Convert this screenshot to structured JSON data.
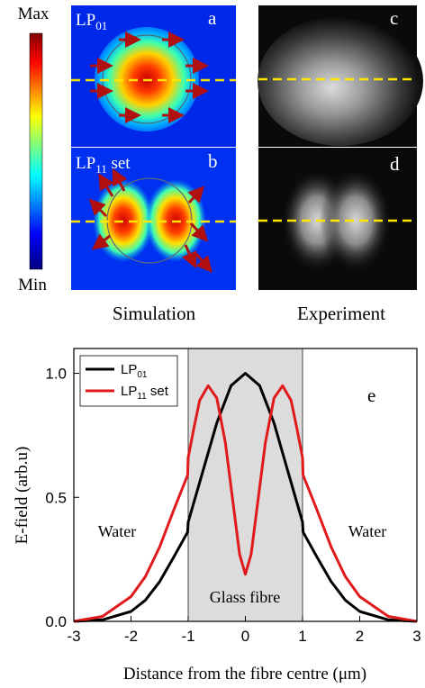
{
  "figure": {
    "colorbar": {
      "max_label": "Max",
      "min_label": "Min"
    },
    "panels": {
      "a": {
        "letter": "a",
        "mode_label": "LP",
        "mode_sub": "01"
      },
      "b": {
        "letter": "b",
        "mode_label": "LP",
        "mode_sub": "11",
        "mode_suffix": " set"
      },
      "c": {
        "letter": "c"
      },
      "d": {
        "letter": "d"
      }
    },
    "captions": {
      "simulation": "Simulation",
      "experiment": "Experiment"
    }
  },
  "chart_data": {
    "type": "line",
    "panel_letter": "e",
    "xlabel": "Distance from the fibre centre (μm)",
    "ylabel": "E-field (arb.u)",
    "xlim": [
      -3,
      3
    ],
    "ylim": [
      0,
      1.1
    ],
    "xticks": [
      "-3",
      "-2",
      "-1",
      "0",
      "1",
      "2",
      "3"
    ],
    "yticks": [
      "0.0",
      "0.5",
      "1.0"
    ],
    "shaded_region": {
      "x": [
        -1,
        1
      ],
      "label": "Glass fibre"
    },
    "region_labels": {
      "left": "Water",
      "right": "Water"
    },
    "legend": {
      "placement": "top-left"
    },
    "colors": {
      "LP01": "#000000",
      "LP11": "#e0191b",
      "shade": "#dcdcdc"
    },
    "series": [
      {
        "name_main": "LP",
        "name_sub": "01",
        "name_suffix": "",
        "color": "#000000",
        "x": [
          -3.0,
          -2.5,
          -2.0,
          -1.75,
          -1.5,
          -1.25,
          -1.01,
          -1.0,
          -0.75,
          -0.5,
          -0.25,
          0.0,
          0.25,
          0.5,
          0.75,
          1.0,
          1.01,
          1.25,
          1.5,
          1.75,
          2.0,
          2.5,
          3.0
        ],
        "y": [
          0.0,
          0.006,
          0.04,
          0.085,
          0.16,
          0.26,
          0.36,
          0.4,
          0.6,
          0.8,
          0.95,
          1.0,
          0.95,
          0.8,
          0.6,
          0.4,
          0.36,
          0.26,
          0.16,
          0.085,
          0.04,
          0.006,
          0.0
        ]
      },
      {
        "name_main": "LP",
        "name_sub": "11",
        "name_suffix": " set",
        "color": "#e0191b",
        "x": [
          -3.0,
          -2.5,
          -2.0,
          -1.75,
          -1.5,
          -1.25,
          -1.01,
          -1.0,
          -0.9,
          -0.8,
          -0.65,
          -0.5,
          -0.35,
          -0.2,
          -0.1,
          0.0,
          0.1,
          0.2,
          0.35,
          0.5,
          0.65,
          0.8,
          0.9,
          1.0,
          1.01,
          1.25,
          1.5,
          1.75,
          2.0,
          2.5,
          3.0
        ],
        "y": [
          0.0,
          0.02,
          0.1,
          0.18,
          0.3,
          0.45,
          0.59,
          0.66,
          0.78,
          0.89,
          0.95,
          0.9,
          0.72,
          0.45,
          0.27,
          0.19,
          0.27,
          0.45,
          0.72,
          0.9,
          0.95,
          0.89,
          0.78,
          0.66,
          0.59,
          0.45,
          0.3,
          0.18,
          0.1,
          0.02,
          0.0
        ]
      }
    ]
  }
}
